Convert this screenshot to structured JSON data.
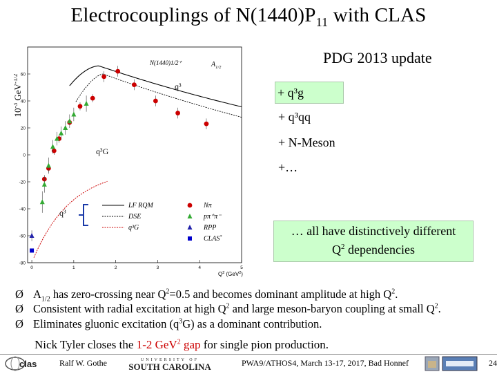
{
  "title_main": "Electrocouplings of N(1440)P",
  "title_sub": "11",
  "title_end": " with CLAS",
  "pdg_update": "PDG 2013 update",
  "options": [
    "+ q³g",
    "+ q³qq",
    "+ N-Meson",
    "+…"
  ],
  "conclusion_line1": "… all have distinctively different",
  "conclusion_line2_pre": "Q",
  "conclusion_line2_sup": "2",
  "conclusion_line2_post": " dependencies",
  "bullet_glyph": "Ø",
  "bullets": {
    "b1": {
      "p1": "A",
      "sub": "1/2",
      "p2": " has zero-crossing near Q",
      "sup1": "2",
      "p3": "=0.5 and becomes dominant amplitude at high Q",
      "sup2": "2",
      "p4": "."
    },
    "b2": {
      "p1": "Consistent with radial excitation at high Q",
      "sup1": "2",
      "p2": " and large meson-baryon coupling at small Q",
      "sup2": "2",
      "p3": "."
    },
    "b3": {
      "p1": "Eliminates gluonic excitation (q",
      "sup1": "3",
      "p2": "G) as a dominant contribution."
    }
  },
  "nick": {
    "pre": "Nick Tyler closes the ",
    "red": "1-2 GeV",
    "red_sup": "2",
    "red2": " gap",
    "post": " for single pion production."
  },
  "footer": {
    "author": "Ralf W. Gothe",
    "usc_top": "UNIVERSITY OF",
    "usc_name": "SOUTH CAROLINA",
    "conference": "PWA9/ATHOS4, March 13-17, 2017, Bad Honnef",
    "page": "24"
  },
  "colors": {
    "nPi": "#cc0000",
    "ppiPi": "#33aa33",
    "rpp": "#2222aa",
    "clas": "#0000cc",
    "box": "#ccffcc",
    "curve_red": "#cc0000"
  },
  "chart_data": {
    "type": "scatter",
    "title": "N(1440)1/2⁺",
    "amplitude_label": "A",
    "amplitude_sub": "1/2",
    "ylabel_pre": "10",
    "ylabel_sup": "-3",
    "ylabel_mid": " GeV",
    "ylabel_sup2": "-1/2",
    "xlabel_pre": "Q",
    "xlabel_sup": "2",
    "xlabel_post": " (GeV",
    "xlabel_sup2": "2",
    "xlabel_end": ")",
    "xlim": [
      -0.1,
      5.0
    ],
    "ylim": [
      -80,
      80
    ],
    "xticks": [
      0,
      1,
      2,
      3,
      4,
      5
    ],
    "yticks": [
      -80,
      -60,
      -40,
      -20,
      0,
      20,
      40,
      60
    ],
    "annotations": {
      "q3": "q³",
      "q3G": "q³G",
      "q3_bracket": "q³"
    },
    "legend": {
      "lines": [
        "LF RQM",
        "DSE",
        "q³G"
      ],
      "markers": [
        "Nπ",
        "pπ⁺π⁻",
        "RPP",
        "CLAS"
      ],
      "marker_sup": "*"
    },
    "series": [
      {
        "name": "Nπ",
        "marker": "circle",
        "points": [
          {
            "x": 0.3,
            "y": -18,
            "e": 3
          },
          {
            "x": 0.4,
            "y": -10,
            "e": 3
          },
          {
            "x": 0.53,
            "y": 3,
            "e": 3
          },
          {
            "x": 0.65,
            "y": 12,
            "e": 3
          },
          {
            "x": 0.9,
            "y": 24,
            "e": 3
          },
          {
            "x": 1.15,
            "y": 36,
            "e": 3
          },
          {
            "x": 1.45,
            "y": 42,
            "e": 3
          },
          {
            "x": 1.72,
            "y": 58,
            "e": 4
          },
          {
            "x": 2.05,
            "y": 62,
            "e": 4
          },
          {
            "x": 2.44,
            "y": 52,
            "e": 4
          },
          {
            "x": 2.95,
            "y": 40,
            "e": 4
          },
          {
            "x": 3.48,
            "y": 31,
            "e": 4
          },
          {
            "x": 4.16,
            "y": 23,
            "e": 4
          }
        ]
      },
      {
        "name": "pπ⁺π⁻",
        "marker": "triangle",
        "points": [
          {
            "x": 0.25,
            "y": -35,
            "e": 8
          },
          {
            "x": 0.3,
            "y": -22,
            "e": 6
          },
          {
            "x": 0.4,
            "y": -8,
            "e": 6
          },
          {
            "x": 0.5,
            "y": 6,
            "e": 5
          },
          {
            "x": 0.6,
            "y": 12,
            "e": 5
          },
          {
            "x": 0.7,
            "y": 16,
            "e": 5
          },
          {
            "x": 0.8,
            "y": 20,
            "e": 5
          },
          {
            "x": 0.9,
            "y": 25,
            "e": 5
          },
          {
            "x": 1.0,
            "y": 30,
            "e": 5
          },
          {
            "x": 1.3,
            "y": 38,
            "e": 6
          }
        ]
      },
      {
        "name": "RPP",
        "marker": "triangle-down",
        "points": [
          {
            "x": 0.0,
            "y": -60,
            "e": 4
          }
        ]
      },
      {
        "name": "CLAS",
        "marker": "square",
        "points": [
          {
            "x": 0.0,
            "y": -71,
            "e": 0
          }
        ]
      }
    ]
  }
}
